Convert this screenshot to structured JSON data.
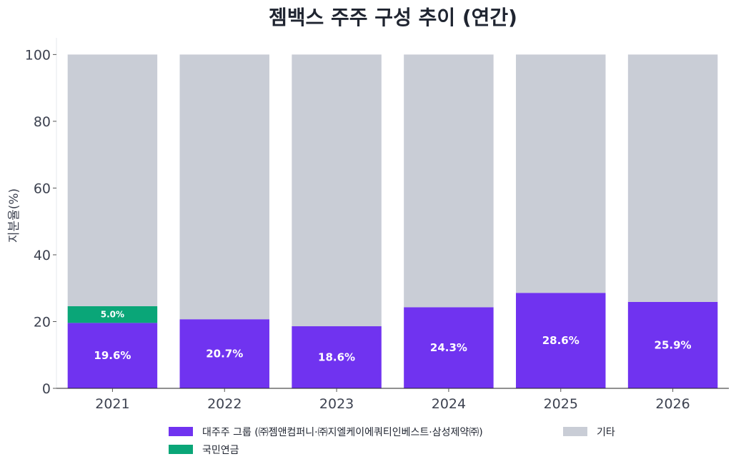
{
  "chart_data": {
    "type": "bar",
    "stacked": true,
    "title": "젬백스 주주 구성 추이 (연간)",
    "ylabel": "지분율(%)",
    "xlabel": "",
    "ylim": [
      0,
      105
    ],
    "yticks": [
      "0",
      "20",
      "40",
      "60",
      "80",
      "100"
    ],
    "categories": [
      "2021",
      "2022",
      "2023",
      "2024",
      "2025",
      "2026"
    ],
    "series": [
      {
        "name": "대주주 그룹 (㈜젬앤컴퍼니·㈜지엘케이에쿼티인베스트·삼성제약㈜)",
        "color": "#7033f0",
        "values": [
          19.6,
          20.7,
          18.6,
          24.3,
          28.6,
          25.9
        ],
        "labels": [
          "19.6%",
          "20.7%",
          "18.6%",
          "24.3%",
          "28.6%",
          "25.9%"
        ]
      },
      {
        "name": "국민연금",
        "color": "#0aa678",
        "values": [
          5.0,
          0,
          0,
          0,
          0,
          0
        ],
        "labels": [
          "5.0%",
          "",
          "",
          "",
          "",
          ""
        ]
      },
      {
        "name": "기타",
        "color": "#c9cdd6",
        "values": [
          75.4,
          79.3,
          81.4,
          75.7,
          71.4,
          74.1
        ],
        "labels": [
          "",
          "",
          "",
          "",
          "",
          ""
        ]
      }
    ],
    "legend": "bottom",
    "grid": false
  }
}
